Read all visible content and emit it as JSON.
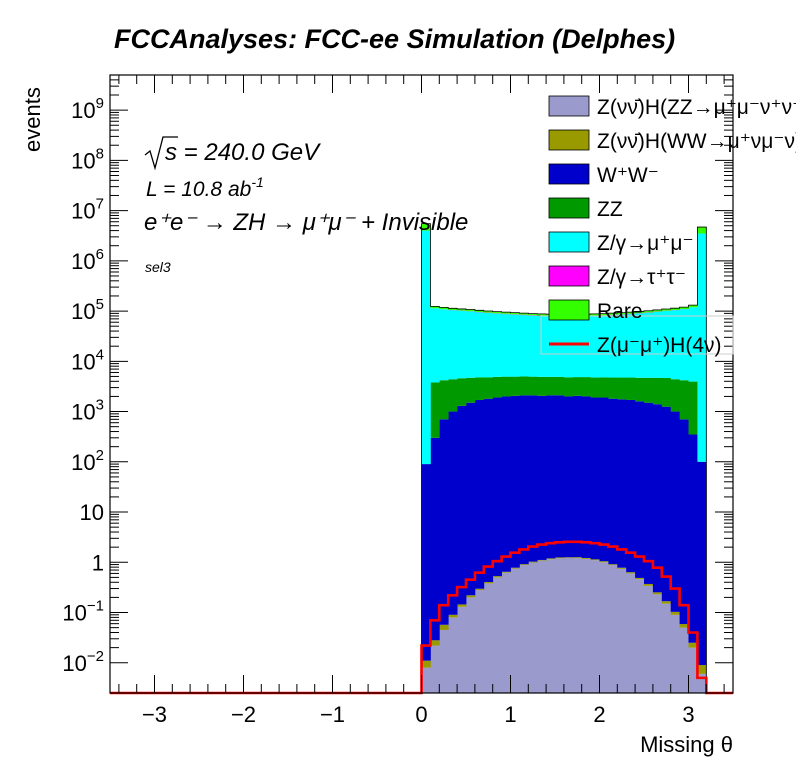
{
  "chart_data": {
    "type": "stacked-histogram",
    "title": "FCCAnalyses: FCC-ee Simulation (Delphes)",
    "xlabel": "Missing θ",
    "ylabel": "events",
    "xlim": [
      -3.5,
      3.5
    ],
    "ylim": [
      0.0025,
      5000000000
    ],
    "yscale": "log",
    "xticks": [
      {
        "v": -3,
        "label": "−3"
      },
      {
        "v": -2,
        "label": "−2"
      },
      {
        "v": -1,
        "label": "−1"
      },
      {
        "v": 0,
        "label": "0"
      },
      {
        "v": 1,
        "label": "1"
      },
      {
        "v": 2,
        "label": "2"
      },
      {
        "v": 3,
        "label": "3"
      }
    ],
    "yticks": [
      {
        "v": 0.01,
        "b": "10",
        "e": "−2"
      },
      {
        "v": 0.1,
        "b": "10",
        "e": "−1"
      },
      {
        "v": 1,
        "b": "1",
        "e": ""
      },
      {
        "v": 10,
        "b": "10",
        "e": ""
      },
      {
        "v": 100,
        "b": "10",
        "e": "2"
      },
      {
        "v": 1000,
        "b": "10",
        "e": "3"
      },
      {
        "v": 10000,
        "b": "10",
        "e": "4"
      },
      {
        "v": 100000,
        "b": "10",
        "e": "5"
      },
      {
        "v": 1000000,
        "b": "10",
        "e": "6"
      },
      {
        "v": 10000000,
        "b": "10",
        "e": "7"
      },
      {
        "v": 100000000,
        "b": "10",
        "e": "8"
      },
      {
        "v": 1000000000,
        "b": "10",
        "e": "9"
      }
    ],
    "annotations": {
      "sqrt_s": "s = 240.0 GeV",
      "lumi": "L = 10.8 ab",
      "lumi_exp": "-1",
      "process": "e⁺e⁻ → ZH → μ⁺μ⁻ + Invisible",
      "selection": "sel3"
    },
    "binning": {
      "xmin": 0.0,
      "xmax": 3.2,
      "nbins": 32
    },
    "stacked_series": [
      {
        "name": "Z(νν̄)H(ZZ→μ⁺μ⁻ν⁺ν⁻)",
        "color": "#9a9acc",
        "values": [
          0.008,
          0.022,
          0.045,
          0.08,
          0.13,
          0.2,
          0.28,
          0.38,
          0.5,
          0.62,
          0.75,
          0.88,
          0.99,
          1.08,
          1.15,
          1.2,
          1.22,
          1.21,
          1.17,
          1.1,
          1.0,
          0.88,
          0.74,
          0.6,
          0.46,
          0.34,
          0.23,
          0.15,
          0.09,
          0.05,
          0.02,
          0.006
        ]
      },
      {
        "name": "Z(νν̄)H(WW→μ⁺νμ⁻ν)",
        "color": "#999900",
        "values": [
          0.003,
          0.006,
          0.012,
          0.01,
          0.015,
          0.02,
          0.017,
          0.024,
          0.03,
          0.026,
          0.03,
          0.036,
          0.04,
          0.032,
          0.045,
          0.05,
          0.038,
          0.052,
          0.047,
          0.044,
          0.05,
          0.035,
          0.04,
          0.034,
          0.028,
          0.03,
          0.022,
          0.018,
          0.013,
          0.009,
          0.005,
          0.003
        ]
      },
      {
        "name": "W⁺W⁻",
        "color": "#0000cc",
        "values": [
          90,
          300,
          700,
          1000,
          1300,
          1500,
          1700,
          1800,
          1900,
          2000,
          2050,
          2100,
          2100,
          2050,
          2100,
          2100,
          2000,
          2050,
          2000,
          1900,
          1900,
          1800,
          1750,
          1700,
          1600,
          1500,
          1400,
          1250,
          1000,
          700,
          350,
          100
        ]
      },
      {
        "name": "ZZ",
        "color": "#009900",
        "values": [
          0,
          3500,
          3500,
          3400,
          3300,
          3200,
          3100,
          3000,
          3000,
          2950,
          2900,
          2900,
          2850,
          2850,
          2800,
          2800,
          2800,
          2800,
          2850,
          2850,
          2900,
          2950,
          3000,
          3050,
          3100,
          3200,
          3300,
          3400,
          3400,
          3500,
          3600,
          0
        ]
      },
      {
        "name": "Z/γ→μ⁺μ⁻",
        "color": "#00ffff",
        "values": [
          4000000,
          110000,
          105000,
          100000,
          97000,
          94000,
          90000,
          87000,
          84000,
          82000,
          80000,
          78000,
          76000,
          75000,
          74000,
          73000,
          73000,
          73000,
          74000,
          75000,
          76000,
          78000,
          80000,
          82000,
          85000,
          88000,
          92000,
          96000,
          100000,
          105000,
          115000,
          3500000
        ]
      },
      {
        "name": "Z/γ→τ⁺τ⁻",
        "color": "#ff00ff",
        "values": [
          60,
          140,
          330,
          650,
          800,
          950,
          1100,
          1250,
          1350,
          1450,
          1500,
          1550,
          1600,
          1600,
          1650,
          1650,
          1650,
          1650,
          1650,
          1600,
          1600,
          1550,
          1500,
          1450,
          1350,
          1250,
          1100,
          950,
          800,
          650,
          330,
          60
        ]
      },
      {
        "name": "Rare",
        "color": "#33ff00",
        "values": [
          1500000,
          10000,
          9000,
          8500,
          8000,
          7800,
          7600,
          7400,
          7200,
          7000,
          6800,
          6600,
          6500,
          6400,
          6300,
          6200,
          6200,
          6300,
          6400,
          6500,
          6600,
          6800,
          7000,
          7200,
          7400,
          7600,
          8000,
          8500,
          9000,
          10000,
          12000,
          1200000
        ]
      }
    ],
    "overlay_series": {
      "name": "Z(μ⁻μ⁺)H(4ν)",
      "color": "#ff0000",
      "values": [
        0.022,
        0.07,
        0.14,
        0.22,
        0.32,
        0.45,
        0.62,
        0.82,
        1.05,
        1.3,
        1.55,
        1.8,
        2.05,
        2.25,
        2.4,
        2.5,
        2.55,
        2.55,
        2.5,
        2.4,
        2.25,
        2.05,
        1.8,
        1.55,
        1.3,
        1.05,
        0.78,
        0.52,
        0.3,
        0.14,
        0.04,
        0.005
      ]
    },
    "legend_order": [
      0,
      1,
      2,
      3,
      4,
      5,
      6,
      7
    ],
    "legend_placement": "top-right",
    "grid": false
  }
}
